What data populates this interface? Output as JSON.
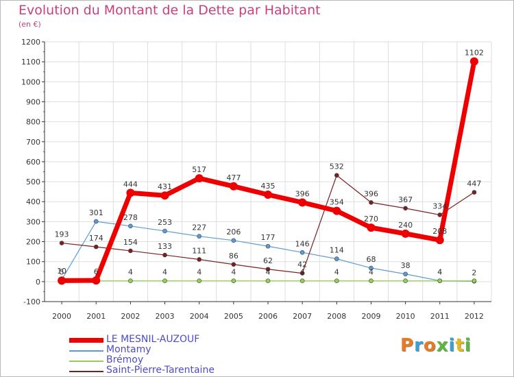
{
  "header": {
    "title": "Evolution du Montant de la Dette par Habitant",
    "unit": "(en €)"
  },
  "logo": {
    "text": "Proxiti",
    "colors": [
      "#e87b1e",
      "#3aa0d8",
      "#e87b1e",
      "#5bb83c",
      "#3aa0d8",
      "#e8b81e",
      "#5bb83c"
    ]
  },
  "chart_data": {
    "type": "line",
    "title": "Evolution du Montant de la Dette par Habitant",
    "ylabel": "(en €)",
    "x": [
      "2000",
      "2001",
      "2002",
      "2003",
      "2004",
      "2005",
      "2006",
      "2007",
      "2008",
      "2009",
      "2010",
      "2011",
      "2012"
    ],
    "ylim": [
      -100,
      1200
    ],
    "yticks": [
      -100,
      0,
      100,
      200,
      300,
      400,
      500,
      600,
      700,
      800,
      900,
      1000,
      1100,
      1200
    ],
    "grid": true,
    "legend": "bottom-left",
    "series": [
      {
        "name": "LE MESNIL-AUZOUF",
        "color": "#ee0000",
        "width": 7,
        "radius": 6,
        "values": [
          5,
          6,
          444,
          431,
          517,
          477,
          435,
          396,
          354,
          270,
          240,
          208,
          1102
        ],
        "labels": [
          "5",
          "6",
          "444",
          "431",
          "517",
          "477",
          "435",
          "396",
          "354",
          "270",
          "240",
          "208",
          "1102"
        ]
      },
      {
        "name": "Montamy",
        "color": "#5b9bd5",
        "width": 1.2,
        "radius": 3,
        "values": [
          10,
          301,
          278,
          253,
          227,
          206,
          177,
          146,
          114,
          68,
          38,
          4,
          2
        ],
        "labels": [
          "10",
          "301",
          "278",
          "253",
          "227",
          "206",
          "177",
          "146",
          "114",
          "68",
          "38",
          "4",
          "2"
        ]
      },
      {
        "name": "Brémoy",
        "color": "#92d050",
        "width": 1.2,
        "radius": 3,
        "values": [
          4,
          4,
          4,
          4,
          4,
          4,
          4,
          4,
          4,
          4,
          4,
          4,
          4
        ],
        "labels": [
          "",
          "",
          "4",
          "4",
          "4",
          "4",
          "4",
          "4",
          "4",
          "4",
          "",
          "4",
          ""
        ]
      },
      {
        "name": "Saint-Pierre-Tarentaine",
        "color": "#7a2020",
        "width": 1.2,
        "radius": 3,
        "values": [
          193,
          174,
          154,
          133,
          111,
          86,
          62,
          42,
          532,
          396,
          367,
          334,
          447
        ],
        "labels": [
          "193",
          "174",
          "154",
          "133",
          "111",
          "86",
          "62",
          "42",
          "532",
          "396",
          "367",
          "334",
          "447"
        ]
      }
    ]
  }
}
